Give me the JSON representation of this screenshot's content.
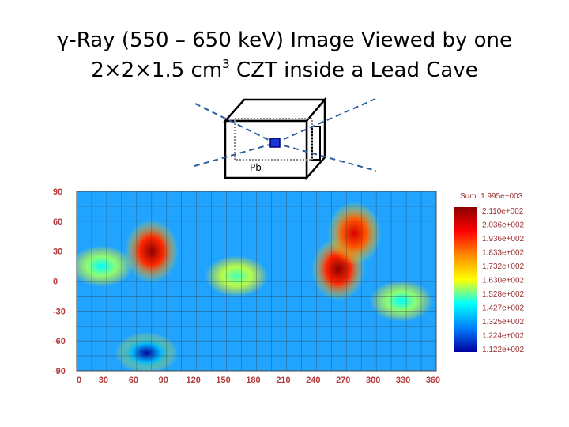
{
  "title_line_1": "γ-Ray (550 – 650 keV) Image Viewed by one",
  "title_line_2_prefix": "2×2×1.5 cm",
  "title_line_2_sup": "3",
  "title_line_2_suffix": " CZT inside a Lead Cave",
  "diagram": {
    "label": "Pb"
  },
  "chart_data": {
    "type": "heatmap",
    "title": "",
    "xlabel": "",
    "ylabel": "",
    "xlim": [
      0,
      360
    ],
    "ylim": [
      -90,
      90
    ],
    "x_ticks": [
      "0",
      "30",
      "60",
      "90",
      "120",
      "150",
      "180",
      "210",
      "240",
      "270",
      "300",
      "330",
      "360"
    ],
    "y_ticks": [
      "90",
      "60",
      "30",
      "0",
      "-30",
      "-60",
      "-90"
    ],
    "grid": true,
    "hotspots": [
      {
        "x": 75,
        "y": 30,
        "value": 210
      },
      {
        "x": 262,
        "y": 12,
        "value": 211
      },
      {
        "x": 278,
        "y": 48,
        "value": 200
      }
    ],
    "coldspots": [
      {
        "x": 70,
        "y": -72,
        "value": 112
      },
      {
        "x": 25,
        "y": 15,
        "value": 145
      },
      {
        "x": 160,
        "y": 5,
        "value": 150
      },
      {
        "x": 325,
        "y": -20,
        "value": 145
      }
    ],
    "colorbar": {
      "header": "Sum: 1.995e+003",
      "labels": [
        "2.110e+002",
        "2.036e+002",
        "1.936e+002",
        "1.833e+002",
        "1.732e+002",
        "1.630e+002",
        "1.528e+002",
        "1.427e+002",
        "1.325e+002",
        "1.224e+002",
        "1.122e+002"
      ],
      "min": 112.2,
      "max": 211.0,
      "colors": [
        "#8b0000",
        "#ff0000",
        "#ff8c00",
        "#ffff00",
        "#00ffff",
        "#0080ff",
        "#0000a0"
      ]
    }
  }
}
